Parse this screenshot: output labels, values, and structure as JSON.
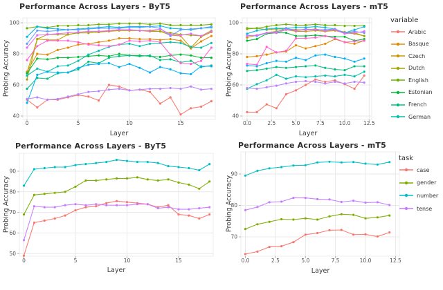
{
  "figure": {
    "background": "#ffffff",
    "grid_color": "#e8e8e8",
    "tick_color": "#4f4f4f",
    "axis_tick_mark_color": "#b5b5b5",
    "panel_border_color": "#ececec"
  },
  "chart_data": [
    {
      "id": "byt5-languages",
      "type": "line",
      "title": "Performance Across Layers - ByT5",
      "xlabel": "Layer",
      "ylabel": "Probing Accuracy",
      "x": [
        0,
        1,
        2,
        3,
        4,
        5,
        6,
        7,
        8,
        9,
        10,
        11,
        12,
        13,
        14,
        15,
        16,
        17,
        18
      ],
      "xticks": [
        0,
        5,
        10,
        15
      ],
      "xtick_labels": [
        "0",
        "5",
        "10",
        "15"
      ],
      "yticks": [
        40,
        60,
        80,
        100
      ],
      "ytick_labels": [
        "40",
        "60",
        "80",
        "100"
      ],
      "xlim": [
        -0.5,
        18.5
      ],
      "ylim": [
        37,
        103
      ],
      "grid": true,
      "legend": null,
      "series": [
        {
          "name": "Arabic",
          "color": "#F8766D",
          "values": [
            50.5,
            45.5,
            50.5,
            50.5,
            52,
            53.5,
            52.5,
            50,
            60,
            59,
            56.5,
            57,
            55.5,
            48,
            52,
            41,
            45,
            46,
            49.5
          ]
        },
        {
          "name": "Basque",
          "color": "#E58700",
          "values": [
            68.5,
            80,
            79.5,
            82.5,
            84,
            86,
            86.5,
            87.5,
            88.5,
            90,
            90,
            89.5,
            89.5,
            89,
            89.5,
            88.5,
            83.5,
            88,
            91.5
          ]
        },
        {
          "name": "Czech",
          "color": "#C99800",
          "values": [
            68,
            89.5,
            89,
            89,
            92.5,
            93.5,
            93.5,
            94,
            94.5,
            95,
            95,
            95,
            94.5,
            94.5,
            92,
            91.5,
            84,
            91,
            94
          ]
        },
        {
          "name": "Dutch",
          "color": "#A3A500",
          "values": [
            63.5,
            89.5,
            92.5,
            92.5,
            92.5,
            93.5,
            93.5,
            94,
            95,
            95.5,
            95.5,
            95,
            95,
            94.5,
            93.5,
            92.5,
            92,
            91.5,
            95
          ]
        },
        {
          "name": "English",
          "color": "#6BB100",
          "values": [
            96.5,
            97.5,
            97,
            98,
            98,
            98.5,
            98.5,
            99,
            99,
            99.5,
            99.5,
            99.5,
            99,
            99.5,
            98.5,
            98.5,
            98.5,
            98.5,
            99
          ]
        },
        {
          "name": "Estonian",
          "color": "#00BA38",
          "values": [
            67.5,
            77,
            76.5,
            77.5,
            77.5,
            78,
            78.5,
            79,
            78.5,
            80,
            79,
            79,
            78.5,
            78,
            79,
            79.5,
            79,
            77.5,
            77.5
          ]
        },
        {
          "name": "French",
          "color": "#00BF7D",
          "values": [
            57.5,
            64.5,
            64,
            67.5,
            68,
            70,
            75,
            74,
            77.5,
            78.5,
            79,
            78.5,
            79,
            76,
            76.5,
            74.5,
            75.5,
            71.5,
            72.5
          ]
        },
        {
          "name": "German",
          "color": "#00C0AF",
          "values": [
            66,
            70.5,
            68.5,
            72,
            72.5,
            75.5,
            79.5,
            82,
            84.5,
            86,
            86.5,
            85,
            86.5,
            87,
            87.5,
            87,
            84.5,
            84,
            87
          ]
        },
        {
          "name": "",
          "color": "#00BCD8",
          "values": [
            91,
            97.5,
            96.5,
            96,
            95.5,
            96,
            96.5,
            97,
            97.5,
            97,
            97.5,
            97.5,
            97.5,
            98,
            96.5,
            96,
            95.5,
            96.5,
            97
          ]
        },
        {
          "name": "",
          "color": "#00B0F6",
          "values": [
            48.5,
            66.5,
            68.5,
            68,
            68,
            71,
            73,
            73.5,
            74,
            71.5,
            73.5,
            71,
            68,
            71.5,
            70,
            67.5,
            67,
            72,
            72
          ]
        },
        {
          "name": "",
          "color": "#619CFF",
          "values": [
            86.5,
            95,
            94.5,
            95,
            95.5,
            95.5,
            96,
            96.5,
            96.5,
            96.5,
            97,
            97,
            97.5,
            96.5,
            91.5,
            95.5,
            96,
            96.5,
            97.5
          ]
        },
        {
          "name": "",
          "color": "#B983FF",
          "values": [
            51,
            52,
            50.5,
            51,
            52.5,
            54,
            55.5,
            56,
            57,
            57.5,
            56.5,
            57,
            57.5,
            57.5,
            58,
            57.5,
            59,
            57,
            57.5
          ]
        },
        {
          "name": "",
          "color": "#E76BF3",
          "values": [
            84,
            92,
            92.5,
            93,
            93.5,
            94,
            94.5,
            94.5,
            95,
            95.5,
            95.5,
            95,
            95,
            96,
            92.5,
            92,
            93,
            91.5,
            94.5
          ]
        },
        {
          "name": "",
          "color": "#FD61D1",
          "values": [
            76,
            85,
            88.5,
            88.5,
            88.5,
            87.5,
            86,
            85.5,
            85,
            86,
            88.5,
            88,
            88.5,
            87.5,
            79.5,
            74,
            73.5,
            75.5,
            84
          ]
        }
      ]
    },
    {
      "id": "mt5-languages",
      "type": "line",
      "title": "Performance Across Layers - mT5",
      "xlabel": "Layer",
      "ylabel": "Probing Accuracy",
      "x": [
        0,
        1,
        2,
        3,
        4,
        5,
        6,
        7,
        8,
        9,
        10,
        11,
        12
      ],
      "xticks": [
        0,
        2.5,
        5,
        7.5,
        10,
        12.5
      ],
      "xtick_labels": [
        "0.0",
        "2.5",
        "5.0",
        "7.5",
        "10.0",
        "12.5"
      ],
      "yticks": [
        40,
        60,
        80,
        100
      ],
      "ytick_labels": [
        "40",
        "60",
        "80",
        "100"
      ],
      "xlim": [
        -0.5,
        13.2
      ],
      "ylim": [
        37,
        103
      ],
      "grid": true,
      "legend": {
        "title": "variable",
        "position": "right",
        "truncated": true,
        "entries": [
          {
            "label": "Arabic",
            "color": "#F8766D"
          },
          {
            "label": "Basque",
            "color": "#E58700"
          },
          {
            "label": "Czech",
            "color": "#C99800"
          },
          {
            "label": "Dutch",
            "color": "#A3A500"
          },
          {
            "label": "English",
            "color": "#6BB100"
          },
          {
            "label": "Estonian",
            "color": "#00BA38"
          },
          {
            "label": "French",
            "color": "#00BF7D"
          },
          {
            "label": "German",
            "color": "#00C0AF",
            "clipped": true
          }
        ]
      },
      "series": [
        {
          "name": "Arabic",
          "color": "#F8766D",
          "values": [
            42.5,
            42.5,
            47.5,
            45,
            54,
            56.5,
            60,
            63.5,
            62,
            63,
            60.5,
            57.5,
            66
          ]
        },
        {
          "name": "Basque",
          "color": "#E58700",
          "values": [
            78,
            78.5,
            79.5,
            81,
            81.5,
            85.5,
            83.5,
            85,
            86.5,
            89.5,
            87.5,
            86.5,
            88.5
          ]
        },
        {
          "name": "Czech",
          "color": "#C99800",
          "values": [
            90.5,
            92,
            93.5,
            94.5,
            95.5,
            94.5,
            94.5,
            95,
            94.5,
            95,
            93.5,
            93,
            91.5
          ]
        },
        {
          "name": "Dutch",
          "color": "#A3A500",
          "values": [
            96,
            96.5,
            95.5,
            96,
            96,
            95.5,
            95.5,
            96,
            95,
            95.5,
            94,
            93.5,
            91.5
          ]
        },
        {
          "name": "English",
          "color": "#6BB100",
          "values": [
            96.5,
            96.5,
            97.5,
            98.5,
            99,
            98.5,
            98.5,
            99,
            98.5,
            98.5,
            98,
            98,
            98
          ]
        },
        {
          "name": "Estonian",
          "color": "#00BA38",
          "values": [
            88.5,
            89.5,
            93,
            93.5,
            93.5,
            91.5,
            91.5,
            92,
            91.5,
            91,
            91,
            88.5,
            89.5
          ]
        },
        {
          "name": "French",
          "color": "#00BF7D",
          "values": [
            69,
            69.5,
            70.5,
            71.5,
            71,
            71.5,
            72,
            72.5,
            71,
            70,
            69.5,
            72,
            72
          ]
        },
        {
          "name": "German",
          "color": "#00C0AF",
          "values": [
            57.5,
            60.5,
            63,
            66.5,
            64,
            65.5,
            65,
            65.5,
            66,
            65.5,
            66.5,
            65.5,
            68.5
          ]
        },
        {
          "name": "",
          "color": "#00BCD8",
          "values": [
            93,
            95,
            96,
            96.5,
            96.5,
            97,
            97,
            97.5,
            97,
            96,
            93.5,
            95.5,
            97.5
          ]
        },
        {
          "name": "",
          "color": "#00B0F6",
          "values": [
            72.5,
            72,
            74,
            75.5,
            75,
            77.5,
            76,
            79,
            79.5,
            78,
            77,
            75,
            77
          ]
        },
        {
          "name": "",
          "color": "#619CFF",
          "values": [
            92,
            91.5,
            93.5,
            94,
            96.5,
            95,
            96,
            95.5,
            95.5,
            96,
            93.5,
            94.5,
            93.5
          ]
        },
        {
          "name": "",
          "color": "#B983FF",
          "values": [
            58,
            57.5,
            58.5,
            59.5,
            61,
            62,
            62.5,
            62,
            61,
            62,
            61,
            62,
            61.5
          ]
        },
        {
          "name": "",
          "color": "#E76BF3",
          "values": [
            91.5,
            92,
            93.5,
            93.5,
            95.5,
            95,
            95.5,
            95.5,
            95,
            95.5,
            93,
            93.5,
            94.5
          ]
        },
        {
          "name": "",
          "color": "#FD61D1",
          "values": [
            73.5,
            73,
            84.5,
            81,
            82,
            90,
            90,
            90.5,
            91.5,
            90,
            87.5,
            88,
            88.5
          ]
        }
      ]
    },
    {
      "id": "byt5-tasks",
      "type": "line",
      "title": "Performance Across Layers - ByT5",
      "xlabel": "Layer",
      "ylabel": "Probing Accuracy",
      "x": [
        0,
        1,
        2,
        3,
        4,
        5,
        6,
        7,
        8,
        9,
        10,
        11,
        12,
        13,
        14,
        15,
        16,
        17,
        18
      ],
      "xticks": [
        0,
        5,
        10,
        15
      ],
      "xtick_labels": [
        "0",
        "5",
        "10",
        "15"
      ],
      "yticks": [
        50,
        60,
        70,
        80,
        90
      ],
      "ytick_labels": [
        "50",
        "60",
        "70",
        "80",
        "90"
      ],
      "xlim": [
        -0.5,
        18.5
      ],
      "ylim": [
        47,
        99
      ],
      "grid": true,
      "legend": null,
      "series": [
        {
          "name": "case",
          "color": "#F8766D",
          "values": [
            49,
            65,
            66,
            67,
            68.5,
            71,
            72.5,
            73,
            74.5,
            75.5,
            75,
            74.5,
            74,
            72.5,
            73.5,
            69,
            68.5,
            67,
            69
          ]
        },
        {
          "name": "gender",
          "color": "#7CAE00",
          "values": [
            69,
            78.5,
            79,
            79.5,
            80,
            82.5,
            85.5,
            85.5,
            86,
            86.5,
            86.5,
            87,
            86,
            85.5,
            86,
            84.5,
            83.5,
            81.5,
            85
          ]
        },
        {
          "name": "number",
          "color": "#00BFC4",
          "values": [
            83,
            91,
            91.5,
            92,
            92,
            93,
            93.5,
            94,
            94.5,
            95.5,
            95,
            94.5,
            94.5,
            94,
            92.5,
            92,
            91.5,
            90.5,
            93.5
          ]
        },
        {
          "name": "tense",
          "color": "#C77CFF",
          "values": [
            56.5,
            73,
            72.5,
            72.5,
            73.5,
            74,
            73.5,
            74,
            73.5,
            73.5,
            73.5,
            74,
            74,
            72,
            72.5,
            71.5,
            71.5,
            72,
            72.5
          ]
        }
      ]
    },
    {
      "id": "mt5-tasks",
      "type": "line",
      "title": "Performance Across Layers - mT5",
      "xlabel": "Layer",
      "ylabel": "Probing Accuracy",
      "x": [
        0,
        1,
        2,
        3,
        4,
        5,
        6,
        7,
        8,
        9,
        10,
        11,
        12
      ],
      "xticks": [
        0,
        2.5,
        5,
        7.5,
        10,
        12.5
      ],
      "xtick_labels": [
        "0.0",
        "2.5",
        "5.0",
        "7.5",
        "10.0",
        "12.5"
      ],
      "yticks": [
        70,
        80,
        90
      ],
      "ytick_labels": [
        "70",
        "80",
        "90"
      ],
      "xlim": [
        -0.5,
        13
      ],
      "ylim": [
        62,
        97
      ],
      "grid": true,
      "legend": {
        "title": "task",
        "position": "right",
        "truncated": false,
        "entries": [
          {
            "label": "case",
            "color": "#F8766D"
          },
          {
            "label": "gender",
            "color": "#7CAE00"
          },
          {
            "label": "number",
            "color": "#00BFC4"
          },
          {
            "label": "tense",
            "color": "#C77CFF"
          }
        ]
      },
      "series": [
        {
          "name": "case",
          "color": "#F8766D",
          "values": [
            64.5,
            65.3,
            66.8,
            67,
            68.3,
            70.7,
            71.2,
            72.1,
            72.2,
            70.7,
            70.8,
            70.1,
            71.4
          ]
        },
        {
          "name": "gender",
          "color": "#7CAE00",
          "values": [
            72.5,
            74,
            74.8,
            75.6,
            75.5,
            75.9,
            75.5,
            76.5,
            77.2,
            77,
            75.9,
            76.2,
            76.8
          ]
        },
        {
          "name": "number",
          "color": "#00BFC4",
          "values": [
            89.5,
            91,
            91.8,
            92.2,
            92.7,
            92.8,
            93.7,
            93.9,
            93.7,
            93.8,
            93.3,
            93,
            93.8
          ]
        },
        {
          "name": "tense",
          "color": "#C77CFF",
          "values": [
            78.5,
            79.5,
            81,
            81.2,
            82.4,
            82.4,
            82,
            81.9,
            81.1,
            81.5,
            80.9,
            81,
            80.1
          ]
        }
      ]
    }
  ]
}
